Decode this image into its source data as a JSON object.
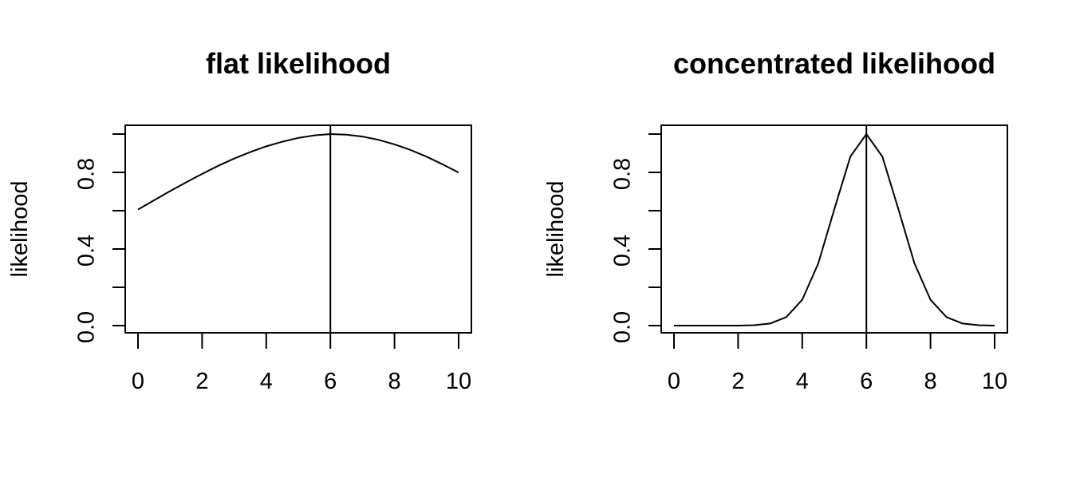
{
  "chart_data": [
    {
      "type": "line",
      "title": "flat likelihood",
      "xlabel": "",
      "ylabel": "likelihood",
      "xlim": [
        0,
        10
      ],
      "ylim": [
        0,
        1
      ],
      "x_ticks": [
        "0",
        "2",
        "4",
        "6",
        "8",
        "10"
      ],
      "y_ticks": [
        "0.0",
        "0.4",
        "0.8"
      ],
      "grid": false,
      "vline_x": 6,
      "series": [
        {
          "x": [
            0,
            0.5,
            1,
            1.5,
            2,
            2.5,
            3,
            3.5,
            4,
            4.5,
            5,
            5.5,
            6,
            6.5,
            7,
            7.5,
            8,
            8.5,
            9,
            9.5,
            10
          ],
          "values": [
            0.606,
            0.654,
            0.702,
            0.748,
            0.792,
            0.834,
            0.872,
            0.906,
            0.936,
            0.96,
            0.98,
            0.993,
            1.0,
            0.997,
            0.987,
            0.97,
            0.946,
            0.917,
            0.882,
            0.842,
            0.799
          ]
        }
      ]
    },
    {
      "type": "line",
      "title": "concentrated likelihood",
      "xlabel": "",
      "ylabel": "likelihood",
      "xlim": [
        0,
        10
      ],
      "ylim": [
        0,
        1
      ],
      "x_ticks": [
        "0",
        "2",
        "4",
        "6",
        "8",
        "10"
      ],
      "y_ticks": [
        "0.0",
        "0.4",
        "0.8"
      ],
      "grid": false,
      "vline_x": 6,
      "series": [
        {
          "x": [
            0,
            0.5,
            1,
            1.5,
            2,
            2.5,
            3,
            3.5,
            4,
            4.5,
            5,
            5.5,
            6,
            6.5,
            7,
            7.5,
            8,
            8.5,
            9,
            9.5,
            10
          ],
          "values": [
            0.0,
            0.0,
            0.0,
            0.0,
            0.0,
            0.002,
            0.011,
            0.044,
            0.135,
            0.325,
            0.607,
            0.882,
            1.0,
            0.882,
            0.607,
            0.325,
            0.135,
            0.044,
            0.011,
            0.002,
            0.0
          ]
        }
      ]
    }
  ]
}
